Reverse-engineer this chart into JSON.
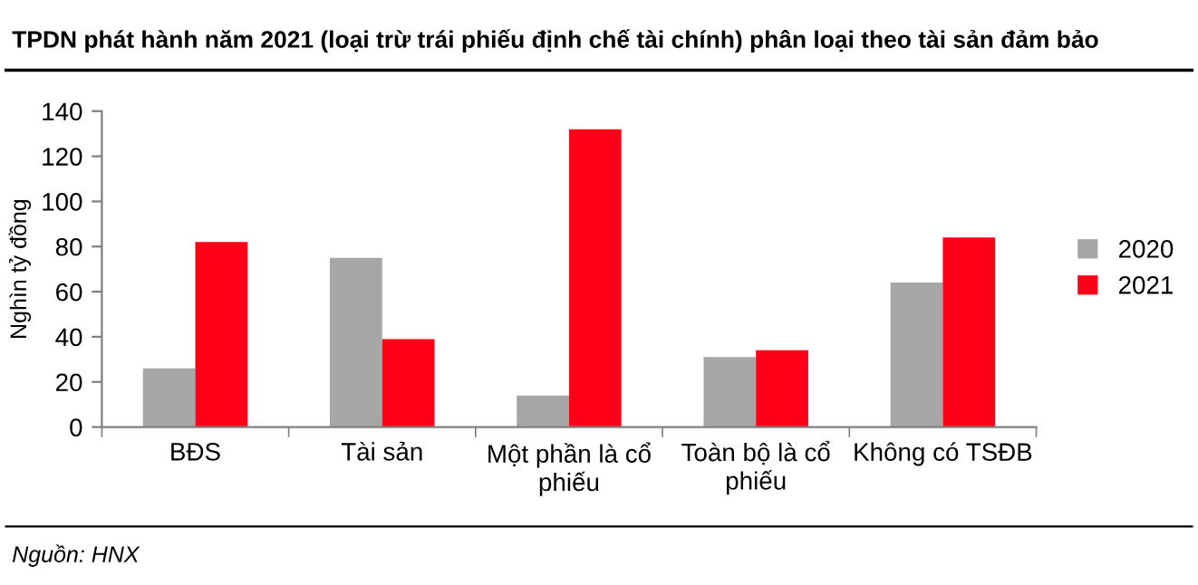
{
  "chart_data": {
    "type": "bar",
    "title": "TPDN phát hành năm 2021 (loại trừ trái phiếu định chế tài chính) phân loại theo tài sản đảm bảo",
    "ylabel": "Nghìn tỷ đồng",
    "categories": [
      "BĐS",
      "Tài sản",
      "Một phần là cổ\nphiếu",
      "Toàn bộ là cổ\nphiếu",
      "Không có TSĐB"
    ],
    "series": [
      {
        "name": "2020",
        "color": "#a6a6a6",
        "values": [
          26,
          75,
          14,
          31,
          64
        ]
      },
      {
        "name": "2021",
        "color": "#ff0019",
        "values": [
          82,
          39,
          132,
          34,
          84
        ]
      }
    ],
    "ylim": [
      0,
      140
    ],
    "yticks": [
      0,
      20,
      40,
      60,
      80,
      100,
      120,
      140
    ],
    "grid": false,
    "legend": "right",
    "annotations": [
      "Nguồn: HNX"
    ]
  }
}
